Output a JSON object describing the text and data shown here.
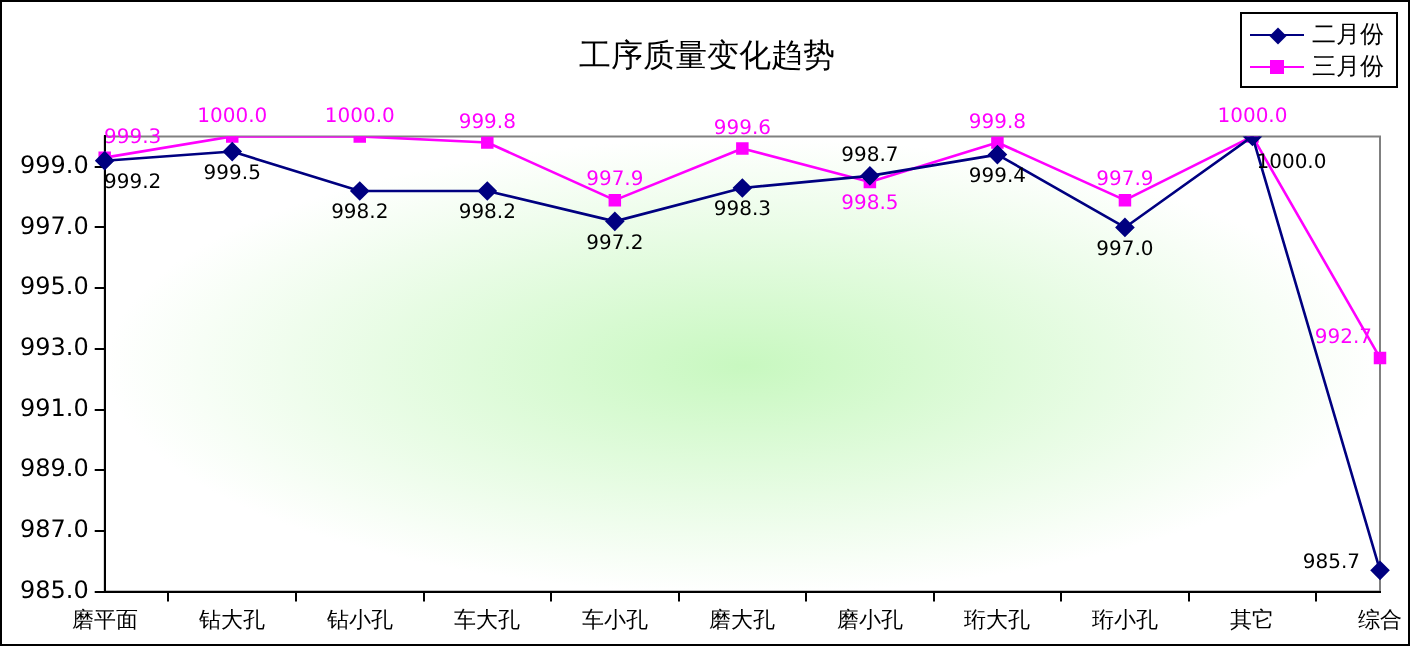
{
  "chart_data": {
    "type": "line",
    "title": "工序质量变化趋势",
    "categories": [
      "磨平面",
      "钻大孔",
      "钻小孔",
      "车大孔",
      "车小孔",
      "磨大孔",
      "磨小孔",
      "珩大孔",
      "珩小孔",
      "其它",
      "综合"
    ],
    "series": [
      {
        "name": "二月份",
        "color": "#000080",
        "marker": "diamond",
        "values": [
          999.2,
          999.5,
          998.2,
          998.2,
          997.2,
          998.3,
          998.7,
          999.4,
          997.0,
          1000.0,
          985.7
        ],
        "value_labels": [
          "999.2",
          "999.5",
          "998.2",
          "998.2",
          "997.2",
          "998.3",
          "998.7",
          "999.4",
          "997.0",
          "1000.0",
          "985.7"
        ]
      },
      {
        "name": "三月份",
        "color": "#ff00ff",
        "marker": "square",
        "values": [
          999.3,
          1000.0,
          1000.0,
          999.8,
          997.9,
          999.6,
          998.5,
          999.8,
          997.9,
          1000.0,
          992.7
        ],
        "value_labels": [
          "999.3",
          "1000.0",
          "1000.0",
          "999.8",
          "997.9",
          "999.6",
          "998.5",
          "999.8",
          "997.9",
          "1000.0",
          "992.7"
        ]
      }
    ],
    "ylim": [
      985,
      1000
    ],
    "yticks": [
      {
        "value": 985,
        "label": "985.0"
      },
      {
        "value": 987,
        "label": "987.0"
      },
      {
        "value": 989,
        "label": "989.0"
      },
      {
        "value": 991,
        "label": "991.0"
      },
      {
        "value": 993,
        "label": "993.0"
      },
      {
        "value": 995,
        "label": "995.0"
      },
      {
        "value": 997,
        "label": "997.0"
      },
      {
        "value": 999,
        "label": "999.0"
      }
    ],
    "grid": false,
    "legend": "top right",
    "line_style": "solid"
  }
}
